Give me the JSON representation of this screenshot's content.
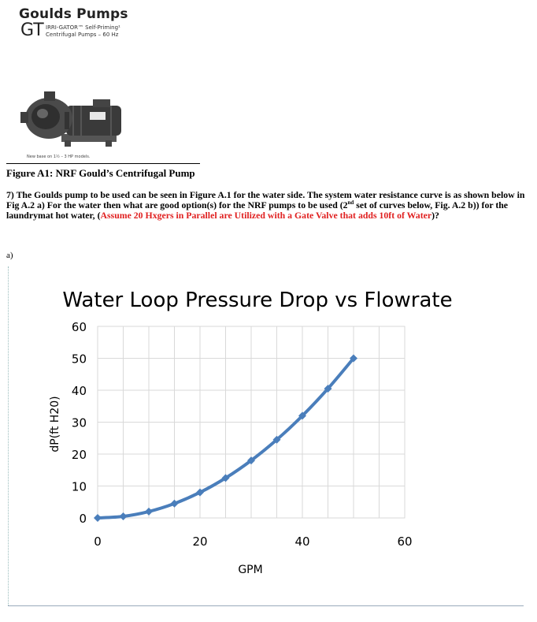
{
  "header": {
    "brand": "Goulds Pumps",
    "series_code": "GT",
    "series_line1": "IRRI-GATOR™ Self-Priming¹",
    "series_line2": "Centrifugal Pumps – 60 Hz"
  },
  "photo": {
    "note": "New base on 1½ – 3 HP models."
  },
  "figure_caption": "Figure A1: NRF Gould’s Centrifugal Pump",
  "question": {
    "part1": "7) The Goulds pump to be used can be seen in Figure A.1 for the water side. The system water resistance curve is as shown below in Fig A.2 a) For the water then what are good option(s) for the NRF pumps to be used (2",
    "sup": "nd",
    "part2": " set of curves below, Fig. A.2 b)) for the laundrymat hot water, (",
    "highlight": "Assume 20 Hxgers in Parallel are Utilized with a Gate Valve that adds 10ft of Water",
    "part3": ")?"
  },
  "part_label": "a)",
  "colors": {
    "series": "#4a7ebb",
    "highlight": "#e02020",
    "grid": "#d9d9d9"
  },
  "chart_data": {
    "type": "line",
    "title": "Water Loop Pressure Drop vs Flowrate",
    "xlabel": "GPM",
    "ylabel": "dP(ft H20)",
    "xlim": [
      0,
      60
    ],
    "ylim": [
      0,
      60
    ],
    "x_ticks": [
      0,
      20,
      40,
      60
    ],
    "y_ticks": [
      0,
      10,
      20,
      30,
      40,
      50,
      60
    ],
    "grid": true,
    "legend": "none",
    "series": [
      {
        "x": [
          0,
          5,
          10,
          15,
          20,
          25,
          30,
          35,
          40,
          45,
          50
        ],
        "y": [
          0,
          0.5,
          2,
          4.5,
          8,
          12.5,
          18,
          24.5,
          32,
          40.5,
          50
        ]
      }
    ]
  }
}
